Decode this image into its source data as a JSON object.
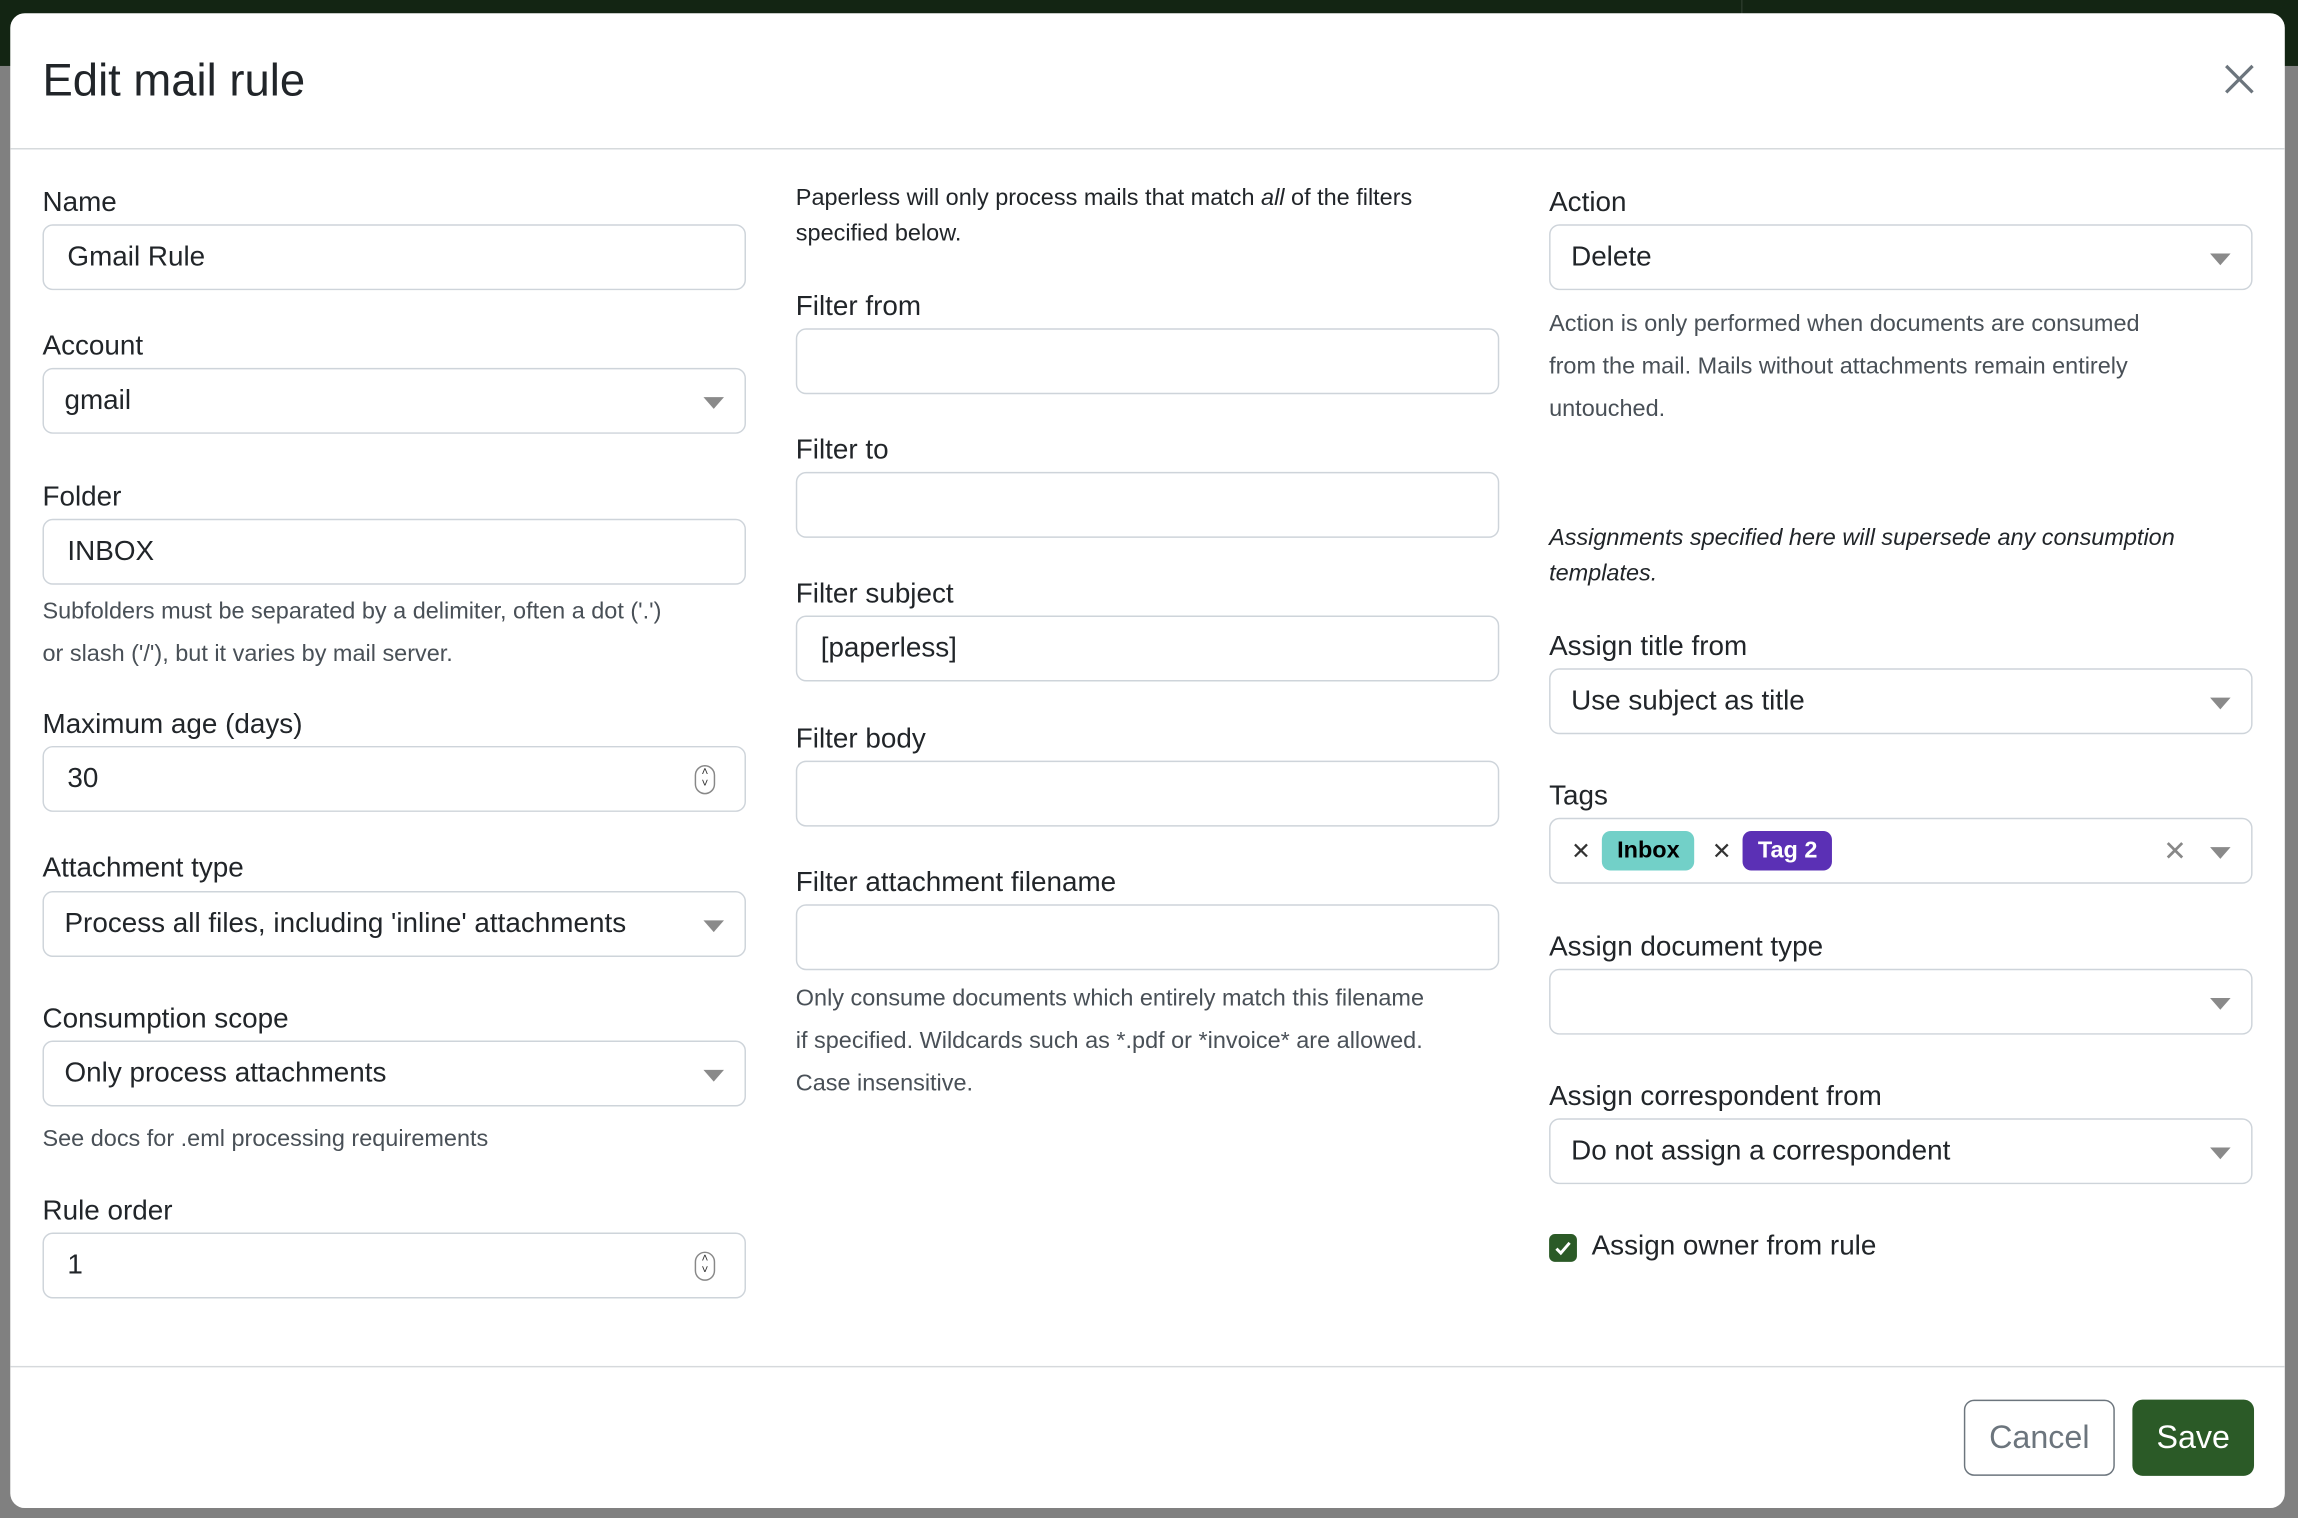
{
  "dialog": {
    "title": "Edit mail rule"
  },
  "left": {
    "name": {
      "label": "Name",
      "value": "Gmail Rule"
    },
    "account": {
      "label": "Account",
      "value": "gmail"
    },
    "folder": {
      "label": "Folder",
      "value": "INBOX",
      "help_line1": "Subfolders must be separated by a delimiter, often a dot ('.')",
      "help_line2": "or slash ('/'), but it varies by mail server."
    },
    "max_age": {
      "label": "Maximum age (days)",
      "value": "30"
    },
    "attachment_type": {
      "label": "Attachment type",
      "value": "Process all files, including 'inline' attachments"
    },
    "consumption_scope": {
      "label": "Consumption scope",
      "value": "Only process attachments",
      "help": "See docs for .eml processing requirements"
    },
    "rule_order": {
      "label": "Rule order",
      "value": "1"
    }
  },
  "middle": {
    "intro_pre": "Paperless will only process mails that match ",
    "intro_em": "all",
    "intro_post": " of the filters",
    "intro_line2": "specified below.",
    "filter_from": {
      "label": "Filter from",
      "value": ""
    },
    "filter_to": {
      "label": "Filter to",
      "value": ""
    },
    "filter_subject": {
      "label": "Filter subject",
      "value": "[paperless]"
    },
    "filter_body": {
      "label": "Filter body",
      "value": ""
    },
    "filter_attachment": {
      "label": "Filter attachment filename",
      "value": "",
      "help_line1": "Only consume documents which entirely match this filename",
      "help_line2": "if specified. Wildcards such as *.pdf or *invoice* are allowed.",
      "help_line3": "Case insensitive."
    }
  },
  "right": {
    "action": {
      "label": "Action",
      "value": "Delete",
      "help_line1": "Action is only performed when documents are consumed",
      "help_line2": "from the mail. Mails without attachments remain entirely",
      "help_line3": "untouched."
    },
    "assign_note_line1": "Assignments specified here will supersede any consumption",
    "assign_note_line2": "templates.",
    "assign_title": {
      "label": "Assign title from",
      "value": "Use subject as title"
    },
    "tags": {
      "label": "Tags",
      "items": [
        {
          "label": "Inbox",
          "bg": "#72d0c8",
          "fg": "#000000"
        },
        {
          "label": "Tag 2",
          "bg": "#5b30b5",
          "fg": "#ffffff"
        }
      ]
    },
    "document_type": {
      "label": "Assign document type",
      "value": ""
    },
    "correspondent": {
      "label": "Assign correspondent from",
      "value": "Do not assign a correspondent"
    },
    "owner_checkbox": {
      "label": "Assign owner from rule",
      "checked": true
    }
  },
  "footer": {
    "cancel": "Cancel",
    "save": "Save"
  },
  "colors": {
    "primary": "#2b5a27",
    "backdrop": "#808080",
    "topbar": "#132513"
  }
}
